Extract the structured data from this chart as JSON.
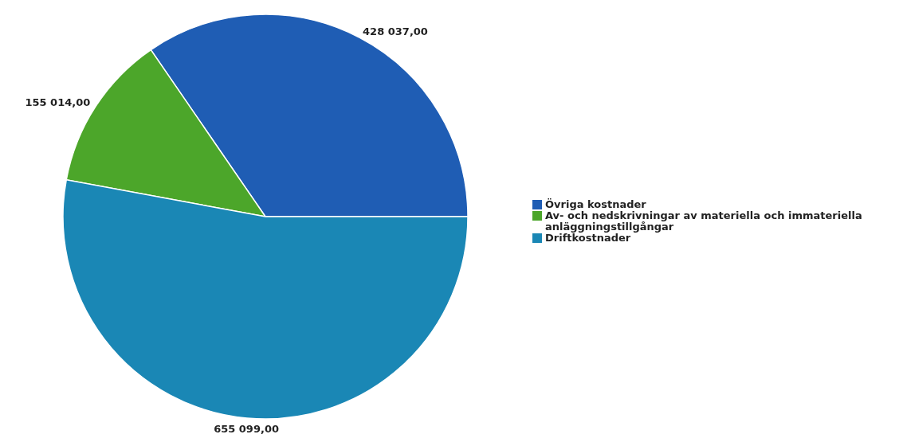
{
  "chart_data": {
    "type": "pie",
    "categories": [
      "Övriga kostnader",
      "Av- och nedskrivningar av materiella och immateriella anläggningstillgångar",
      "Driftkostnader"
    ],
    "values": [
      428037,
      155014,
      655099
    ],
    "value_labels": [
      "428 037,00",
      "155 014,00",
      "655 099,00"
    ],
    "colors": [
      "#1f5db4",
      "#4ca62a",
      "#1a87b5"
    ],
    "legend": "right"
  }
}
